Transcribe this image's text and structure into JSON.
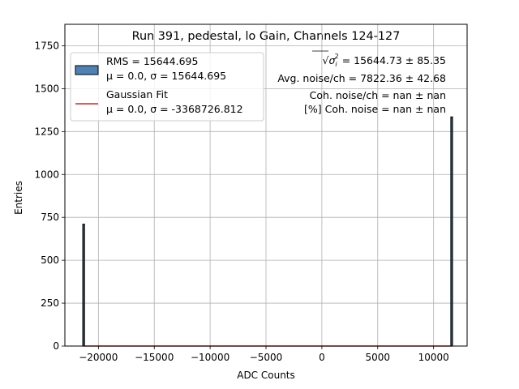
{
  "chart_data": {
    "type": "histogram",
    "title": "Run 391, pedestal, lo Gain, Channels 124-127",
    "xlabel": "ADC Counts",
    "ylabel": "Entries",
    "xlim": [
      -23000,
      13000
    ],
    "ylim": [
      0,
      1875
    ],
    "grid": true,
    "legend_position": "top-left",
    "x_ticks": [
      {
        "value": -20000,
        "label": "−20000"
      },
      {
        "value": -15000,
        "label": "−15000"
      },
      {
        "value": -10000,
        "label": "−10000"
      },
      {
        "value": -5000,
        "label": "−5000"
      },
      {
        "value": 0,
        "label": "0"
      },
      {
        "value": 5000,
        "label": "5000"
      },
      {
        "value": 10000,
        "label": "10000"
      }
    ],
    "y_ticks": [
      {
        "value": 0,
        "label": "0"
      },
      {
        "value": 250,
        "label": "250"
      },
      {
        "value": 500,
        "label": "500"
      },
      {
        "value": 750,
        "label": "750"
      },
      {
        "value": 1000,
        "label": "1000"
      },
      {
        "value": 1250,
        "label": "1250"
      },
      {
        "value": 1500,
        "label": "1500"
      },
      {
        "value": 1750,
        "label": "1750"
      }
    ],
    "series": [
      {
        "name": "RMS = 15644.695",
        "subtitle": "μ = 0.0, σ = 15644.695",
        "kind": "histogram",
        "color": "#4f81b5",
        "edge_color": "#000000",
        "bins": [
          {
            "x": -21320,
            "y": 710
          },
          {
            "x": 11620,
            "y": 1335
          }
        ]
      },
      {
        "name": "Gaussian Fit",
        "subtitle": "μ = 0.0, σ = -3368726.812",
        "kind": "line",
        "color": "#d62728",
        "x_range": [
          -21300,
          11600
        ],
        "y": 0
      }
    ],
    "annotations": [
      {
        "prefix": "√",
        "symbol": "σ",
        "sub": "i",
        "sup": "2",
        "text": " = 15644.73 ± 85.35"
      },
      {
        "text": "Avg. noise/ch = 7822.36 ± 42.68"
      },
      {
        "text": "Coh. noise/ch = nan ± nan"
      },
      {
        "text": "[%] Coh. noise = nan ± nan"
      }
    ]
  }
}
